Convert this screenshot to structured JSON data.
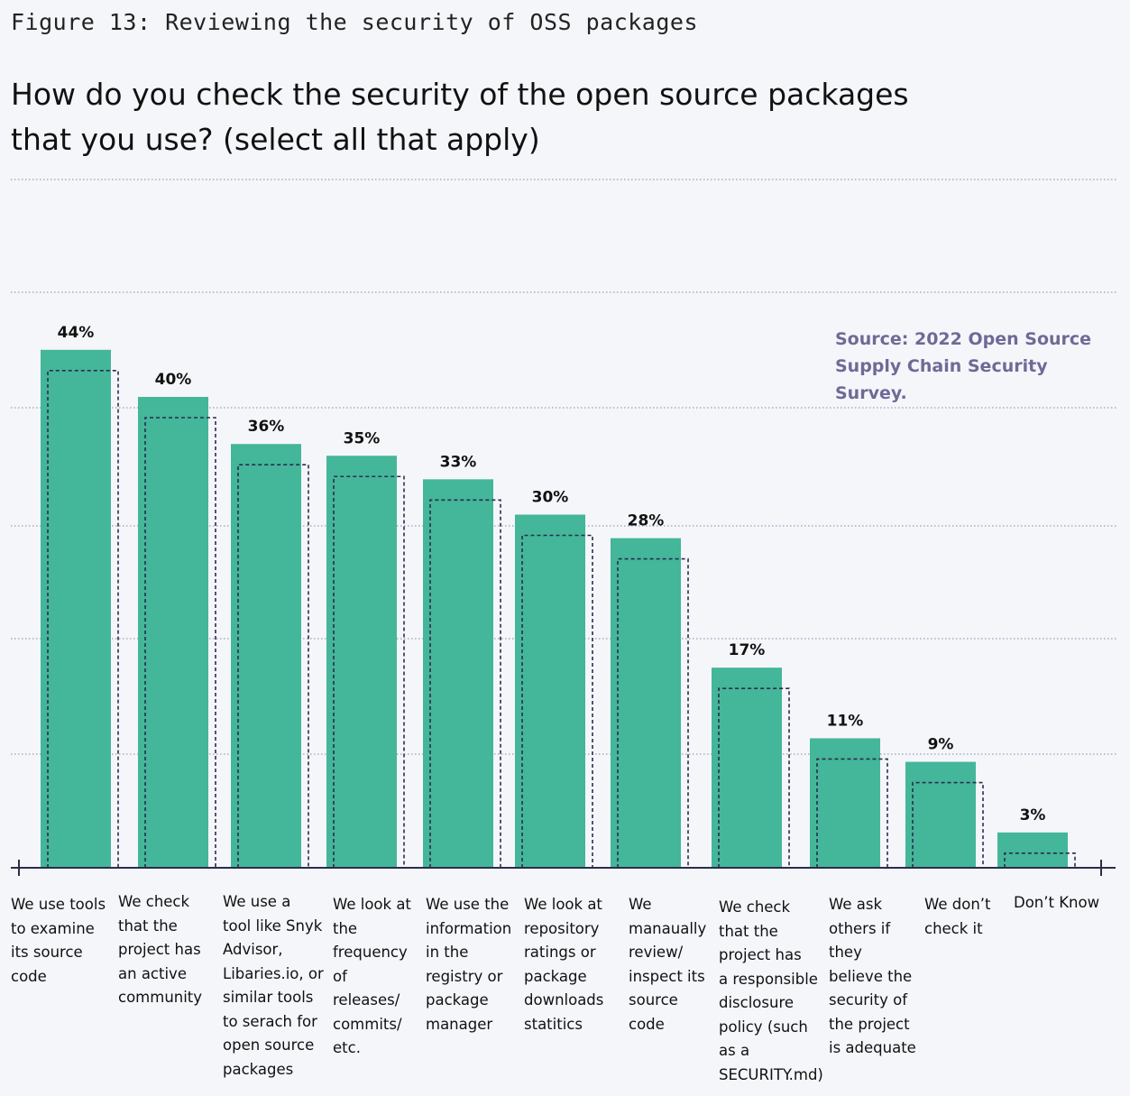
{
  "figure_label": "Figure 13: Reviewing the security of OSS packages",
  "colors": {
    "bar": "#44b69a",
    "background": "#f5f6fa",
    "source_text": "#6e6a96",
    "dotted_outline": "#2b2d4a",
    "grid": "#9a9cb6",
    "axis": "#2b2d4a"
  },
  "chart_data": {
    "type": "bar",
    "title": "How do you check the security of the open source packages that you use? (select all that apply)",
    "source": "Source: 2022 Open Source Supply Chain Security Survey.",
    "categories": [
      "We use tools to examine its source code",
      "We check that the project has an active community",
      "We use a tool like Snyk Advisor, Libaries.io, or similar tools to serach for open source packages",
      "We look at the frequency of releases/ commits/ etc.",
      "We use the information in the registry or package manager",
      "We look at repository ratings or package downloads statitics",
      "We manaually review/ inspect its source code",
      "We check that the project has a responsible disclosure policy (such as a SECURITY.md)",
      "We ask others if they believe the security of the project is adequate",
      "We don’t check it",
      "Don’t Know"
    ],
    "values": [
      44,
      40,
      36,
      35,
      33,
      30,
      28,
      17,
      11,
      9,
      3
    ],
    "value_labels": [
      "44%",
      "40%",
      "36%",
      "35%",
      "33%",
      "30%",
      "28%",
      "17%",
      "11%",
      "9%",
      "3%"
    ],
    "grid": true,
    "value_unit": "%"
  }
}
